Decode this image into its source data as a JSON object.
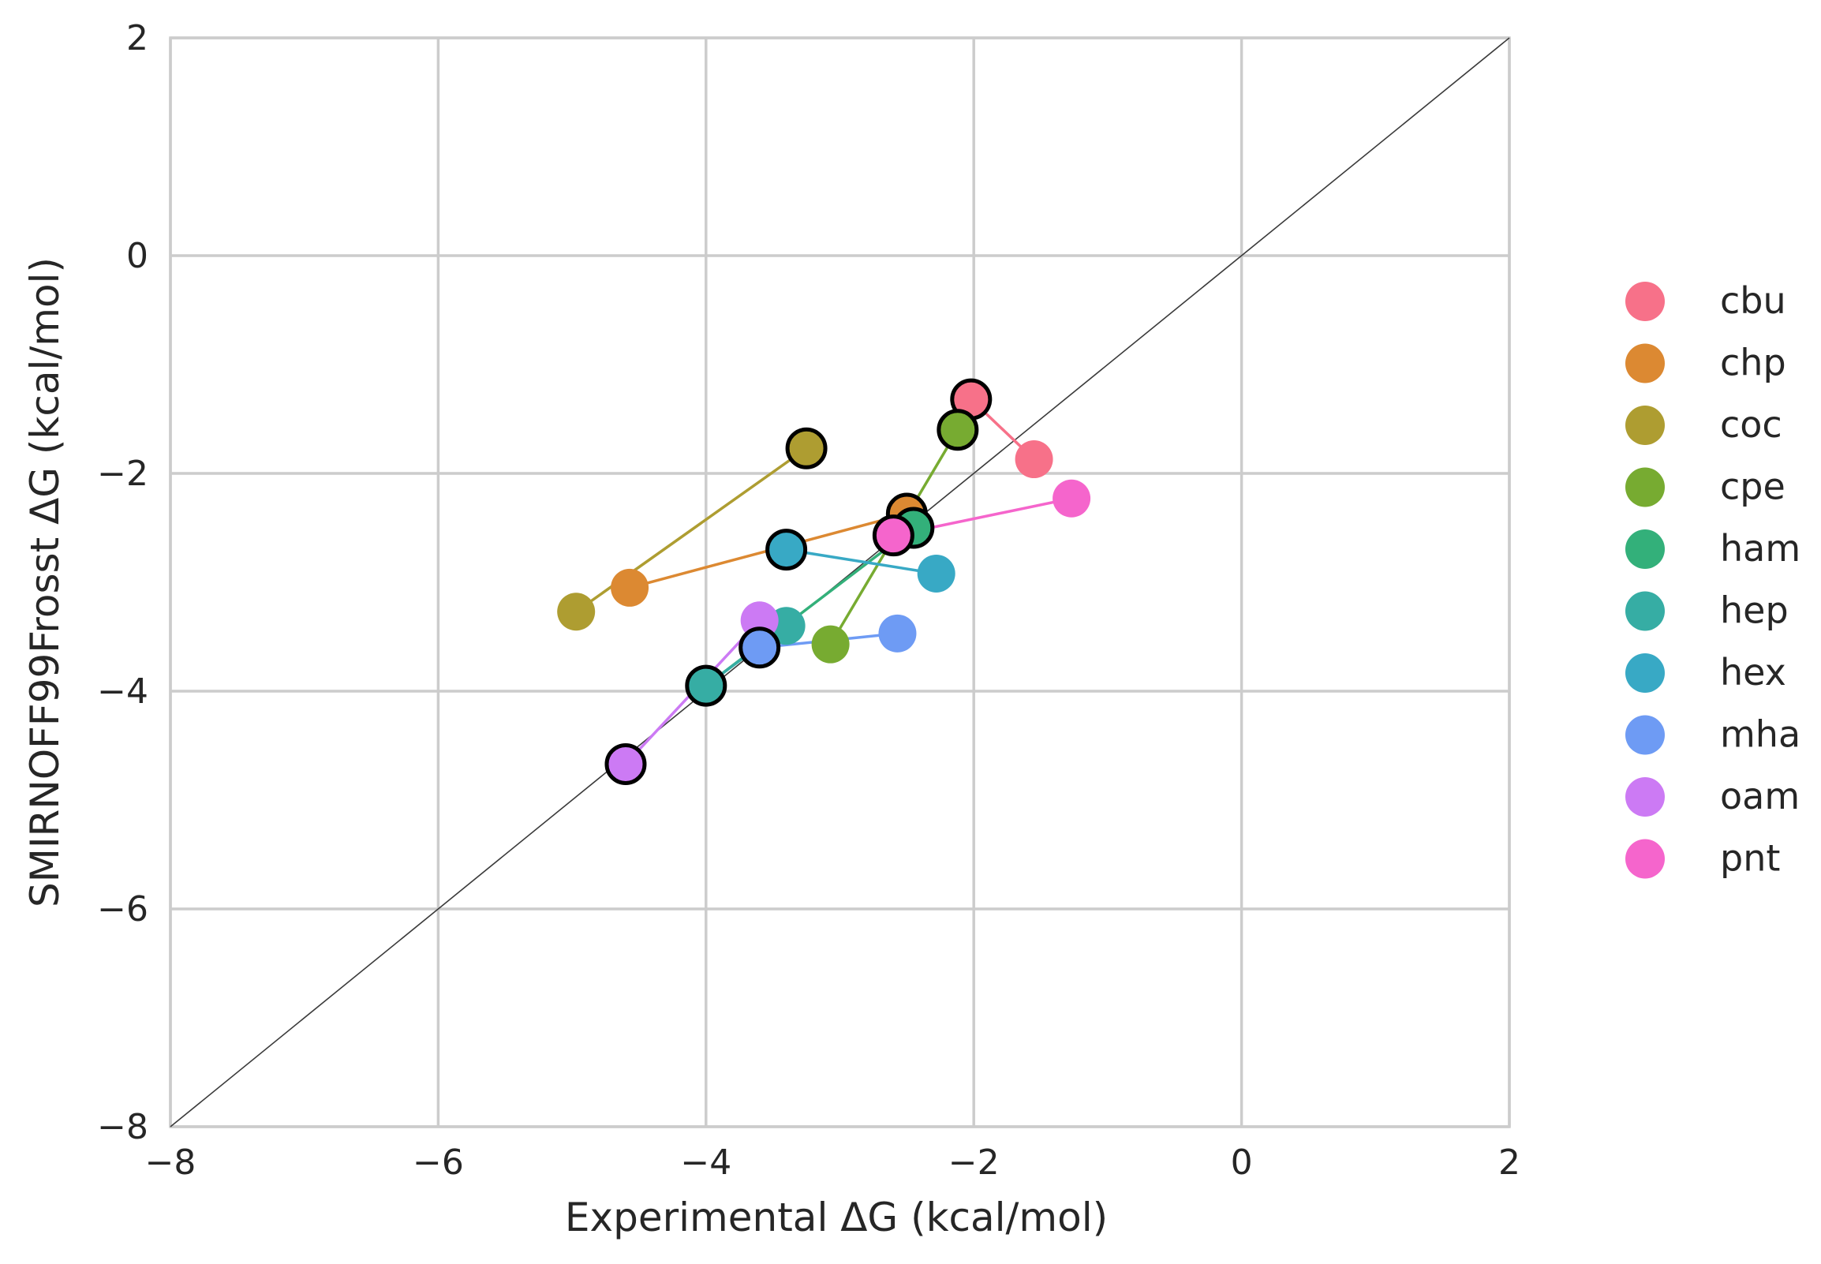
{
  "chart_data": {
    "type": "scatter",
    "title": "",
    "xlabel": "Experimental ΔG (kcal/mol)",
    "ylabel": "SMIRNOFF99Frosst ΔG (kcal/mol)",
    "xlim": [
      -8,
      2
    ],
    "ylim": [
      -8,
      2
    ],
    "xticks": [
      -8,
      -6,
      -4,
      -2,
      0,
      2
    ],
    "yticks": [
      -8,
      -6,
      -4,
      -2,
      0,
      2
    ],
    "xtick_labels": [
      "−8",
      "−6",
      "−4",
      "−2",
      "0",
      "2"
    ],
    "ytick_labels": [
      "−8",
      "−6",
      "−4",
      "−2",
      "0",
      "2"
    ],
    "grid": true,
    "diagonal": true,
    "legend_position": "right",
    "series": [
      {
        "name": "cbu",
        "color": "#f77189",
        "hub": [
          -2.02,
          -1.32
        ],
        "points": [
          [
            -1.55,
            -1.87
          ]
        ]
      },
      {
        "name": "chp",
        "color": "#dc8932",
        "hub": [
          -2.5,
          -2.37
        ],
        "points": [
          [
            -4.57,
            -3.05
          ]
        ]
      },
      {
        "name": "coc",
        "color": "#ae9d31",
        "hub": [
          -3.25,
          -1.77
        ],
        "points": [
          [
            -4.97,
            -3.27
          ]
        ]
      },
      {
        "name": "cpe",
        "color": "#77ab31",
        "hub": [
          -2.12,
          -1.6
        ],
        "points": [
          [
            -3.07,
            -3.57
          ]
        ]
      },
      {
        "name": "ham",
        "color": "#33b07a",
        "hub": [
          -2.45,
          -2.5
        ],
        "points": [
          [
            -4.0,
            -3.95
          ]
        ]
      },
      {
        "name": "hep",
        "color": "#36ada4",
        "hub": [
          -4.0,
          -3.95
        ],
        "points": [
          [
            -3.4,
            -3.4
          ]
        ]
      },
      {
        "name": "hex",
        "color": "#38a9c5",
        "hub": [
          -3.4,
          -2.7
        ],
        "points": [
          [
            -2.28,
            -2.92
          ]
        ]
      },
      {
        "name": "mha",
        "color": "#6e9bf4",
        "hub": [
          -3.6,
          -3.6
        ],
        "points": [
          [
            -2.57,
            -3.47
          ]
        ]
      },
      {
        "name": "oam",
        "color": "#cc7af4",
        "hub": [
          -4.6,
          -4.67
        ],
        "points": [
          [
            -3.6,
            -3.35
          ]
        ]
      },
      {
        "name": "pnt",
        "color": "#f565cc",
        "hub": [
          -2.6,
          -2.57
        ],
        "points": [
          [
            -1.27,
            -2.23
          ]
        ]
      }
    ]
  }
}
